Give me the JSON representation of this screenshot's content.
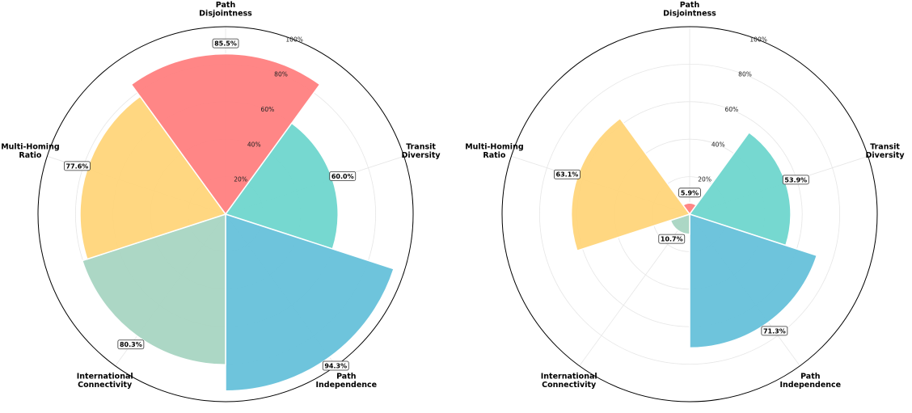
{
  "chart_data": [
    {
      "type": "polar-bar",
      "categories": [
        "Path Disjointness",
        "Transit Diversity",
        "Path Independence",
        "International Connectivity",
        "Multi-Homing Ratio"
      ],
      "axis_labels": [
        [
          "Path",
          "Disjointness"
        ],
        [
          "Transit",
          "Diversity"
        ],
        [
          "Path",
          "Independence"
        ],
        [
          "International",
          "Connectivity"
        ],
        [
          "Multi-Homing",
          "Ratio"
        ]
      ],
      "values": [
        85.5,
        60.0,
        94.3,
        80.3,
        77.6
      ],
      "value_labels": [
        "85.5%",
        "60.0%",
        "94.3%",
        "80.3%",
        "77.6%"
      ],
      "colors": [
        "#FF8080",
        "#6FD6CE",
        "#66C1DA",
        "#A8D5C2",
        "#FFD57A"
      ],
      "rlim": [
        0,
        100
      ],
      "r_ticks": [
        20,
        40,
        60,
        80,
        100
      ],
      "r_tick_labels": [
        "20%",
        "40%",
        "60%",
        "80%",
        "100%"
      ],
      "grid": true
    },
    {
      "type": "polar-bar",
      "categories": [
        "Path Disjointness",
        "Transit Diversity",
        "Path Independence",
        "International Connectivity",
        "Multi-Homing Ratio"
      ],
      "axis_labels": [
        [
          "Path",
          "Disjointness"
        ],
        [
          "Transit",
          "Diversity"
        ],
        [
          "Path",
          "Independence"
        ],
        [
          "International",
          "Connectivity"
        ],
        [
          "Multi-Homing",
          "Ratio"
        ]
      ],
      "values": [
        5.9,
        53.9,
        71.3,
        10.7,
        63.1
      ],
      "value_labels": [
        "5.9%",
        "53.9%",
        "71.3%",
        "10.7%",
        "63.1%"
      ],
      "colors": [
        "#FF8080",
        "#6FD6CE",
        "#66C1DA",
        "#A8D5C2",
        "#FFD57A"
      ],
      "rlim": [
        0,
        100
      ],
      "r_ticks": [
        20,
        40,
        60,
        80,
        100
      ],
      "r_tick_labels": [
        "20%",
        "40%",
        "60%",
        "80%",
        "100%"
      ],
      "grid": true
    }
  ]
}
